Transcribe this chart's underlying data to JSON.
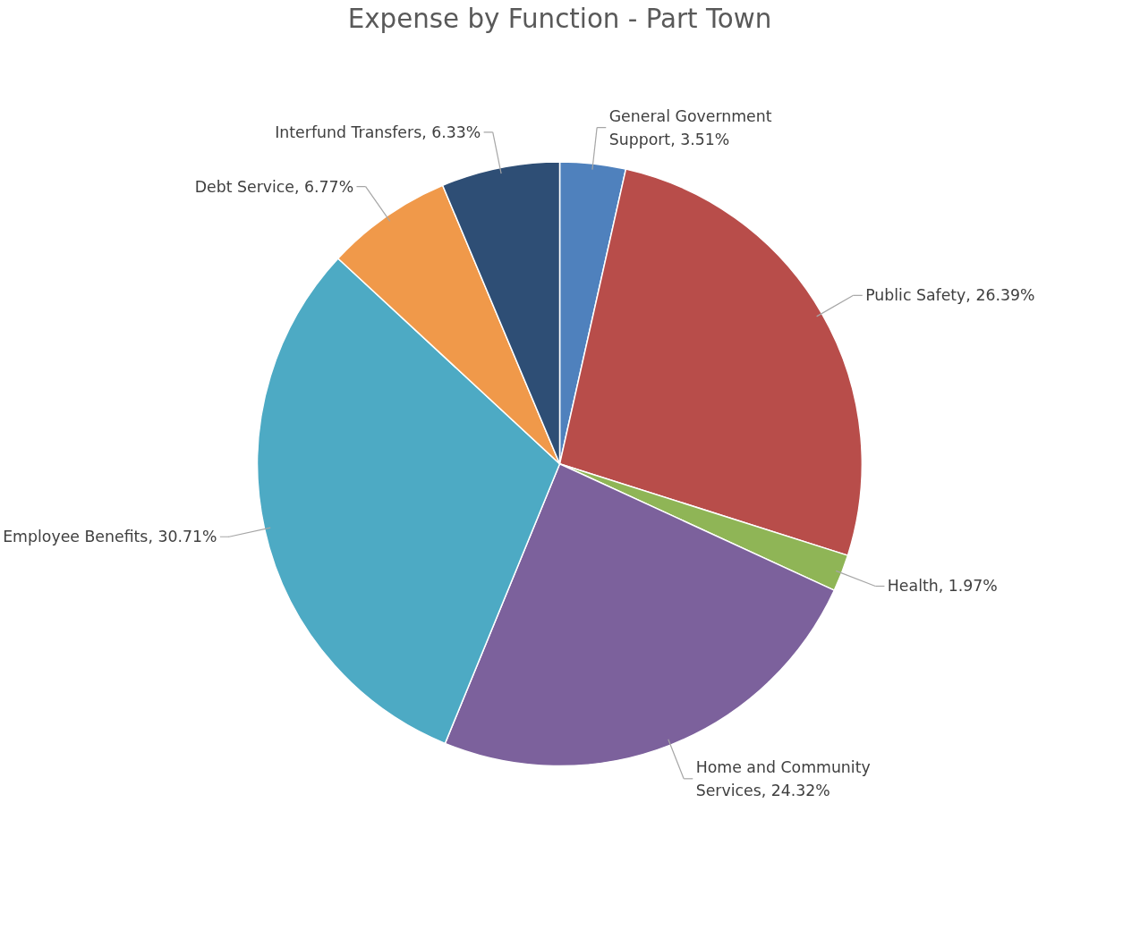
{
  "chart_data": {
    "type": "pie",
    "title": "Expense by Function - Part Town",
    "categories": [
      "General Government Support",
      "Public Safety",
      "Health",
      "Home and Community Services",
      "Employee Benefits",
      "Debt Service",
      "Interfund Transfers"
    ],
    "values": [
      3.51,
      26.39,
      1.97,
      24.32,
      30.71,
      6.77,
      6.33
    ],
    "value_labels": [
      "3.51%",
      "26.39%",
      "1.97%",
      "24.32%",
      "30.71%",
      "6.77%",
      "6.33%"
    ],
    "colors": [
      "#4f81bd",
      "#b84d4a",
      "#8fb556",
      "#7c619c",
      "#4daac4",
      "#f0994a",
      "#2e4e75"
    ],
    "legend": false
  }
}
